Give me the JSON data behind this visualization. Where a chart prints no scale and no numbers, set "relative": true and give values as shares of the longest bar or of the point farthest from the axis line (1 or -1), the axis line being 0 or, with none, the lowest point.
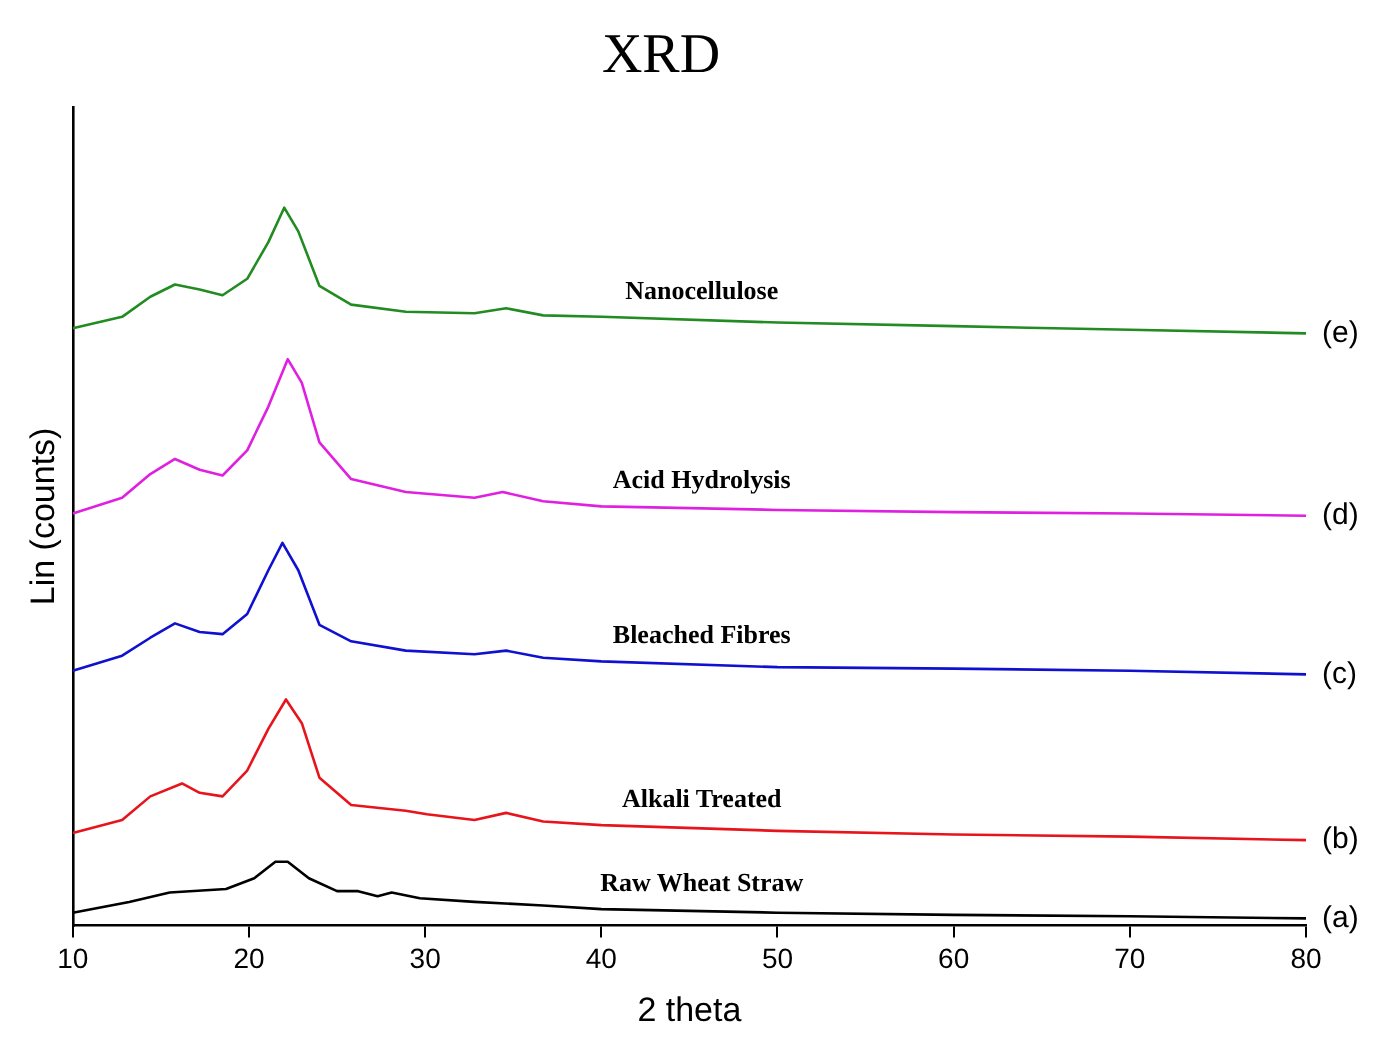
{
  "chart_data": {
    "type": "line",
    "title": "XRD",
    "xlabel": "2 theta",
    "ylabel": "Lin (counts)",
    "relative": true,
    "xlim": [
      10,
      80
    ],
    "xticks": [
      10,
      20,
      30,
      40,
      50,
      60,
      70,
      80
    ],
    "grid": false,
    "legend": false,
    "marker": "none",
    "line_style": "solid",
    "series": [
      {
        "name": "Raw Wheat Straw",
        "color": "#000000",
        "x": [
          10,
          13.2,
          15.5,
          18.7,
          20.3,
          21.5,
          22.2,
          23.4,
          25,
          26.2,
          27.3,
          28.1,
          29.7,
          32.8,
          36.7,
          40,
          50,
          60,
          70,
          80
        ],
        "values": [
          0.018,
          0.033,
          0.046,
          0.051,
          0.066,
          0.089,
          0.089,
          0.066,
          0.048,
          0.048,
          0.041,
          0.046,
          0.038,
          0.033,
          0.028,
          0.023,
          0.018,
          0.015,
          0.013,
          0.01
        ]
      },
      {
        "name": "Alkali Treated",
        "color": "#e8141c",
        "x": [
          10,
          12.8,
          14.4,
          16.2,
          17.2,
          18.5,
          19.9,
          21.1,
          22.1,
          23,
          24,
          25.8,
          28.9,
          30.1,
          32.8,
          34.6,
          36.7,
          40,
          50,
          60,
          70,
          80
        ],
        "values": [
          0.129,
          0.147,
          0.18,
          0.198,
          0.185,
          0.18,
          0.216,
          0.274,
          0.315,
          0.282,
          0.206,
          0.168,
          0.16,
          0.155,
          0.147,
          0.157,
          0.145,
          0.14,
          0.132,
          0.127,
          0.124,
          0.119
        ]
      },
      {
        "name": "Bleached Fibres",
        "color": "#1010d0",
        "x": [
          10,
          12.8,
          14.4,
          15.8,
          17.2,
          18.5,
          19.9,
          21.1,
          21.9,
          22.8,
          24,
          25.8,
          28.9,
          32.8,
          34.6,
          36.7,
          40,
          50,
          60,
          70,
          80
        ],
        "values": [
          0.355,
          0.376,
          0.401,
          0.421,
          0.409,
          0.406,
          0.434,
          0.495,
          0.533,
          0.495,
          0.419,
          0.396,
          0.383,
          0.378,
          0.383,
          0.373,
          0.368,
          0.36,
          0.358,
          0.355,
          0.35
        ]
      },
      {
        "name": "Acid Hydrolysis",
        "color": "#e020e0",
        "x": [
          10,
          12.8,
          14.4,
          15.8,
          17.2,
          18.5,
          19.9,
          21.1,
          22.2,
          23,
          24,
          25.8,
          28.9,
          32.8,
          34.4,
          36.7,
          40,
          50,
          60,
          70,
          80
        ],
        "values": [
          0.574,
          0.596,
          0.629,
          0.65,
          0.635,
          0.627,
          0.662,
          0.723,
          0.789,
          0.756,
          0.673,
          0.622,
          0.604,
          0.596,
          0.604,
          0.591,
          0.584,
          0.579,
          0.576,
          0.574,
          0.571
        ]
      },
      {
        "name": "Nanocellulose",
        "color": "#228b22",
        "x": [
          10,
          12.8,
          14.4,
          15.8,
          17.2,
          18.5,
          19.9,
          21.1,
          22,
          22.8,
          24,
          25.8,
          28.9,
          32.8,
          34.6,
          36.7,
          40,
          50,
          60,
          70,
          80
        ],
        "values": [
          0.832,
          0.848,
          0.876,
          0.893,
          0.886,
          0.878,
          0.901,
          0.952,
          1,
          0.967,
          0.891,
          0.865,
          0.855,
          0.853,
          0.86,
          0.85,
          0.848,
          0.84,
          0.835,
          0.83,
          0.825
        ]
      }
    ],
    "annotations": [
      "(a)",
      "(b)",
      "(c)",
      "(d)",
      "(e)"
    ]
  }
}
